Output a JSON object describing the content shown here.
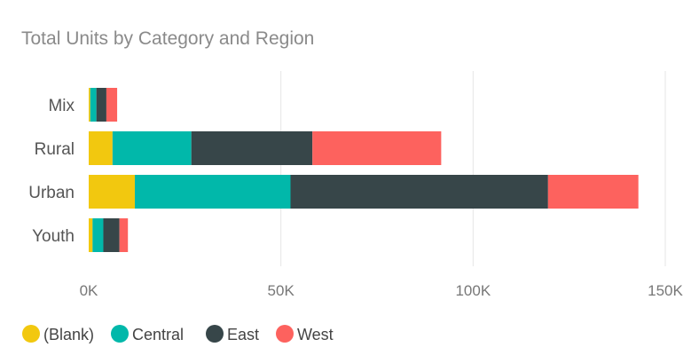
{
  "chart_data": {
    "type": "bar",
    "orientation": "horizontal",
    "stacked": true,
    "title": "Total Units by Category and Region",
    "categories": [
      "Mix",
      "Rural",
      "Urban",
      "Youth"
    ],
    "series": [
      {
        "name": "(Blank)",
        "color": "#F2C80F",
        "values": [
          400,
          6200,
          12000,
          1000
        ]
      },
      {
        "name": "Central",
        "color": "#01B8AA",
        "values": [
          1600,
          20500,
          40500,
          2800
        ]
      },
      {
        "name": "East",
        "color": "#374649",
        "values": [
          2600,
          31500,
          67000,
          4200
        ]
      },
      {
        "name": "West",
        "color": "#FD625E",
        "values": [
          2800,
          33500,
          23500,
          2200
        ]
      }
    ],
    "xlim": [
      0,
      150000
    ],
    "xticks": [
      0,
      50000,
      100000,
      150000
    ],
    "xtick_labels": [
      "0K",
      "50K",
      "100K",
      "150K"
    ],
    "grid": true,
    "legend": "bottom-left"
  }
}
